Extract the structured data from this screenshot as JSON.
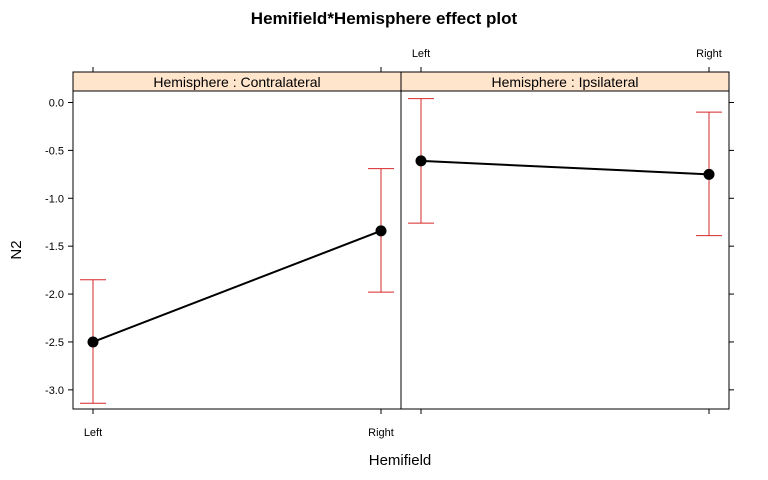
{
  "chart_data": {
    "type": "line",
    "title": "Hemifield*Hemisphere effect plot",
    "xlabel": "Hemifield",
    "ylabel": "N2",
    "categories": [
      "Left",
      "Right"
    ],
    "y_ticks": [
      "0.0",
      "-0.5",
      "-1.0",
      "-1.5",
      "-2.0",
      "-2.5",
      "-3.0"
    ],
    "ylim": [
      -3.2,
      0.12
    ],
    "panels": [
      {
        "strip": "Hemisphere : Contralateral",
        "series": {
          "x": [
            "Left",
            "Right"
          ],
          "y": [
            -2.5,
            -1.34
          ],
          "lower": [
            -3.14,
            -1.98
          ],
          "upper": [
            -1.85,
            -0.69
          ]
        }
      },
      {
        "strip": "Hemisphere : Ipsilateral",
        "series": {
          "x": [
            "Left",
            "Right"
          ],
          "y": [
            -0.61,
            -0.75
          ],
          "lower": [
            -1.26,
            -1.39
          ],
          "upper": [
            0.04,
            -0.1
          ]
        }
      }
    ],
    "colors": {
      "line": "#000000",
      "error_bar": "#d62728",
      "strip_bg": "#ffe5cc"
    },
    "grid": false,
    "legend": "none"
  }
}
